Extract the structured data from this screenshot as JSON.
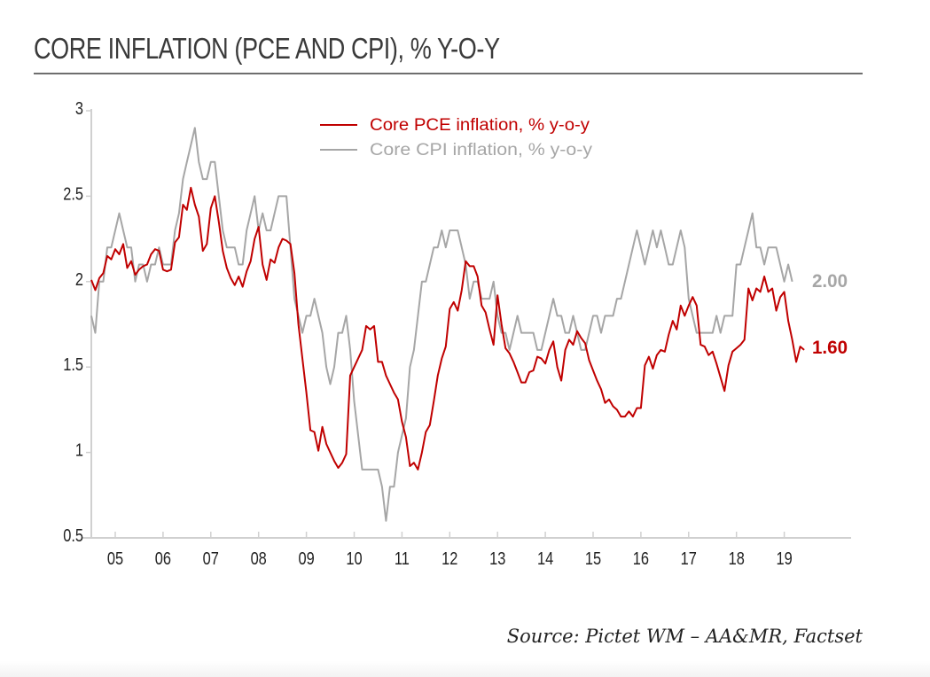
{
  "title": "CORE INFLATION (PCE AND CPI), % Y-O-Y",
  "source": "Source: Pictet WM – AA&MR, Factset",
  "colors": {
    "pce": "#c00000",
    "cpi": "#a6a6a6",
    "axis": "#d0d0d0",
    "text": "#222222"
  },
  "chart_data": {
    "type": "line",
    "title": "CORE INFLATION (PCE AND CPI), % Y-O-Y",
    "xlabel": "",
    "ylabel": "",
    "ylim": [
      0.5,
      3
    ],
    "yticks": [
      0.5,
      1,
      1.5,
      2,
      2.5,
      3
    ],
    "ytick_labels": [
      "0.5",
      "1",
      "1.5",
      "2",
      "2.5",
      "3"
    ],
    "xlim": [
      2004.5,
      2019.5
    ],
    "xticks": [
      2005,
      2006,
      2007,
      2008,
      2009,
      2010,
      2011,
      2012,
      2013,
      2014,
      2015,
      2016,
      2017,
      2018,
      2019
    ],
    "xtick_labels": [
      "05",
      "06",
      "07",
      "08",
      "09",
      "10",
      "11",
      "12",
      "13",
      "14",
      "15",
      "16",
      "17",
      "18",
      "19"
    ],
    "grid": false,
    "legend_position": "top-center",
    "frequency": "monthly",
    "x_start": "2004-07",
    "series": [
      {
        "name": "Core PCE inflation, % y-o-y",
        "key": "pce",
        "end_label": "1.60",
        "values": [
          2.01,
          1.95,
          2.02,
          2.05,
          2.15,
          2.13,
          2.19,
          2.16,
          2.22,
          2.08,
          2.12,
          2.04,
          2.07,
          2.09,
          2.1,
          2.16,
          2.19,
          2.18,
          2.07,
          2.06,
          2.07,
          2.23,
          2.26,
          2.45,
          2.42,
          2.55,
          2.45,
          2.38,
          2.18,
          2.22,
          2.43,
          2.5,
          2.35,
          2.18,
          2.08,
          2.02,
          1.98,
          2.03,
          1.97,
          2.06,
          2.12,
          2.25,
          2.32,
          2.1,
          2.01,
          2.13,
          2.11,
          2.2,
          2.25,
          2.24,
          2.22,
          2.05,
          1.75,
          1.55,
          1.35,
          1.13,
          1.12,
          1.01,
          1.15,
          1.05,
          1.0,
          0.95,
          0.91,
          0.94,
          0.99,
          1.45,
          1.5,
          1.55,
          1.6,
          1.74,
          1.72,
          1.74,
          1.53,
          1.53,
          1.45,
          1.4,
          1.35,
          1.31,
          1.18,
          1.09,
          0.92,
          0.94,
          0.9,
          1.0,
          1.12,
          1.16,
          1.3,
          1.45,
          1.55,
          1.62,
          1.84,
          1.88,
          1.83,
          1.95,
          2.12,
          2.09,
          2.09,
          2.03,
          1.86,
          1.82,
          1.72,
          1.63,
          1.92,
          1.75,
          1.61,
          1.58,
          1.53,
          1.47,
          1.41,
          1.41,
          1.47,
          1.48,
          1.56,
          1.55,
          1.52,
          1.6,
          1.65,
          1.5,
          1.42,
          1.6,
          1.66,
          1.63,
          1.71,
          1.67,
          1.64,
          1.54,
          1.48,
          1.42,
          1.37,
          1.29,
          1.31,
          1.27,
          1.25,
          1.21,
          1.21,
          1.24,
          1.21,
          1.26,
          1.26,
          1.51,
          1.56,
          1.49,
          1.57,
          1.6,
          1.59,
          1.69,
          1.77,
          1.72,
          1.86,
          1.8,
          1.86,
          1.91,
          1.86,
          1.63,
          1.62,
          1.57,
          1.59,
          1.52,
          1.44,
          1.36,
          1.51,
          1.59,
          1.61,
          1.63,
          1.66,
          1.96,
          1.89,
          1.96,
          1.94,
          2.03,
          1.94,
          1.96,
          1.83,
          1.91,
          1.94,
          1.77,
          1.66,
          1.53,
          1.62,
          1.6
        ]
      },
      {
        "name": "Core CPI inflation, % y-o-y",
        "key": "cpi",
        "end_label": "2.00",
        "values": [
          1.8,
          1.7,
          2.0,
          2.0,
          2.2,
          2.2,
          2.3,
          2.4,
          2.3,
          2.2,
          2.2,
          2.0,
          2.1,
          2.1,
          2.0,
          2.1,
          2.1,
          2.2,
          2.1,
          2.1,
          2.1,
          2.3,
          2.4,
          2.6,
          2.7,
          2.8,
          2.9,
          2.7,
          2.6,
          2.6,
          2.7,
          2.7,
          2.5,
          2.3,
          2.2,
          2.2,
          2.2,
          2.1,
          2.1,
          2.3,
          2.4,
          2.5,
          2.3,
          2.4,
          2.3,
          2.3,
          2.4,
          2.5,
          2.5,
          2.5,
          2.2,
          1.9,
          1.8,
          1.7,
          1.8,
          1.8,
          1.9,
          1.8,
          1.7,
          1.5,
          1.4,
          1.5,
          1.7,
          1.7,
          1.8,
          1.6,
          1.3,
          1.1,
          0.9,
          0.9,
          0.9,
          0.9,
          0.9,
          0.8,
          0.6,
          0.8,
          0.8,
          1.0,
          1.1,
          1.2,
          1.5,
          1.6,
          1.8,
          2.0,
          2.0,
          2.1,
          2.2,
          2.2,
          2.3,
          2.2,
          2.3,
          2.3,
          2.3,
          2.2,
          2.1,
          1.9,
          2.0,
          2.0,
          1.9,
          1.9,
          1.9,
          2.0,
          1.8,
          1.7,
          1.7,
          1.6,
          1.7,
          1.8,
          1.7,
          1.7,
          1.7,
          1.7,
          1.6,
          1.6,
          1.7,
          1.8,
          1.9,
          1.8,
          1.8,
          1.7,
          1.7,
          1.8,
          1.7,
          1.6,
          1.6,
          1.7,
          1.8,
          1.8,
          1.7,
          1.8,
          1.8,
          1.8,
          1.9,
          1.9,
          2.0,
          2.1,
          2.2,
          2.3,
          2.2,
          2.1,
          2.2,
          2.3,
          2.2,
          2.3,
          2.2,
          2.1,
          2.1,
          2.2,
          2.3,
          2.2,
          1.9,
          1.8,
          1.7,
          1.7,
          1.7,
          1.7,
          1.7,
          1.8,
          1.7,
          1.8,
          1.8,
          1.8,
          2.1,
          2.1,
          2.2,
          2.3,
          2.4,
          2.2,
          2.2,
          2.1,
          2.2,
          2.2,
          2.2,
          2.1,
          2.0,
          2.1,
          2.0
        ]
      }
    ]
  }
}
